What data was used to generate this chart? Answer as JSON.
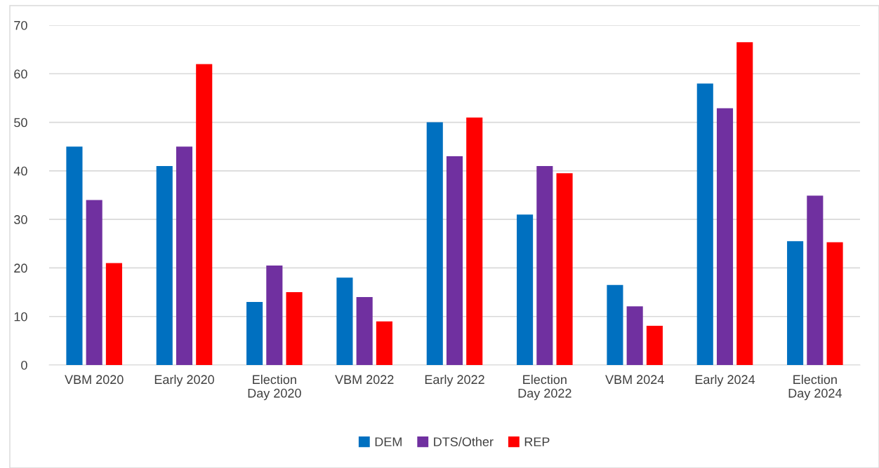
{
  "chart_data": {
    "type": "bar",
    "categories": [
      "VBM 2020",
      "Early 2020",
      "Election\nDay 2020",
      "VBM 2022",
      "Early 2022",
      "Election\nDay 2022",
      "VBM 2024",
      "Early 2024",
      "Election\nDay 2024"
    ],
    "series": [
      {
        "name": "DEM",
        "color": "#0070c0",
        "values": [
          45,
          41,
          13,
          18,
          50,
          31,
          16.5,
          58,
          25.5
        ]
      },
      {
        "name": "DTS/Other",
        "color": "#7030a0",
        "values": [
          34,
          45,
          20.5,
          14,
          43,
          41,
          12.1,
          52.9,
          34.9
        ]
      },
      {
        "name": "REP",
        "color": "#ff0000",
        "values": [
          21,
          62,
          15,
          9,
          51,
          39.5,
          8.1,
          66.5,
          25.3
        ]
      }
    ],
    "ylim": [
      0,
      70
    ],
    "yticks": [
      0,
      10,
      20,
      30,
      40,
      50,
      60,
      70
    ],
    "grid": "y",
    "legend": "bottom"
  }
}
